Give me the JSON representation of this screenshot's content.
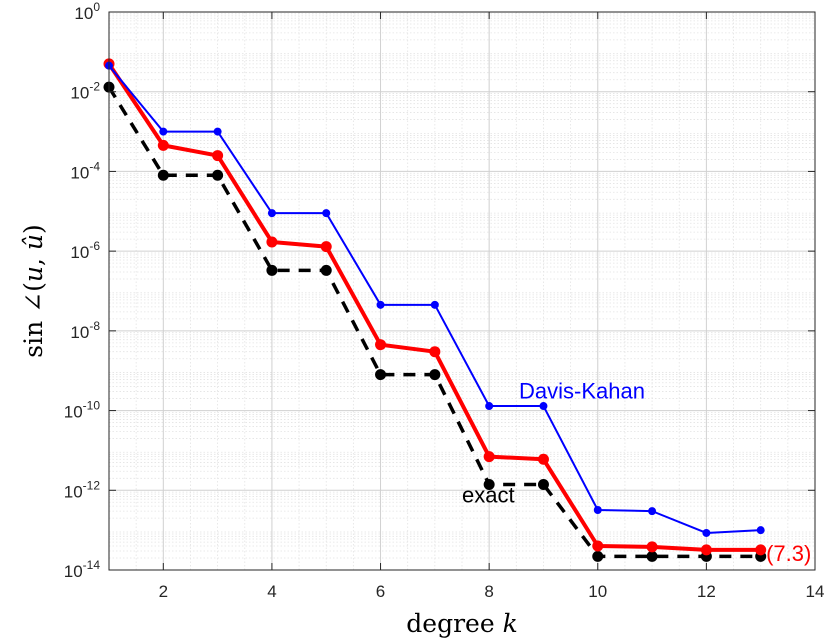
{
  "chart_data": {
    "type": "line",
    "xlabel": "degree k",
    "ylabel": "sin ∠(u, û)",
    "xlim": [
      1,
      14
    ],
    "ylim": [
      1e-14,
      1
    ],
    "yscale": "log",
    "grid": "major and minor",
    "x_ticks": [
      2,
      4,
      6,
      8,
      10,
      12,
      14
    ],
    "y_ticks": [
      {
        "base": "10",
        "exp": "0",
        "value": 1
      },
      {
        "base": "10",
        "exp": "-2",
        "value": 0.01
      },
      {
        "base": "10",
        "exp": "-4",
        "value": 0.0001
      },
      {
        "base": "10",
        "exp": "-6",
        "value": 1e-06
      },
      {
        "base": "10",
        "exp": "-8",
        "value": 1e-08
      },
      {
        "base": "10",
        "exp": "-10",
        "value": 1e-10
      },
      {
        "base": "10",
        "exp": "-12",
        "value": 1e-12
      },
      {
        "base": "10",
        "exp": "-14",
        "value": 1e-14
      }
    ],
    "series": [
      {
        "name": "Davis-Kahan",
        "color": "#0000ff",
        "style": "solid-thin",
        "x": [
          1,
          2,
          3,
          4,
          5,
          6,
          7,
          8,
          9,
          10,
          11,
          12,
          13
        ],
        "y": [
          0.045,
          0.001,
          0.001,
          9e-06,
          9e-06,
          4.5e-08,
          4.5e-08,
          1.3e-10,
          1.3e-10,
          3.2e-13,
          3e-13,
          8.5e-14,
          1e-13
        ]
      },
      {
        "name": "(7.3)",
        "color": "#ff0000",
        "style": "solid-thick",
        "x": [
          1,
          2,
          3,
          4,
          5,
          6,
          7,
          8,
          9,
          10,
          11,
          12,
          13
        ],
        "y": [
          0.05,
          0.00045,
          0.00025,
          1.7e-06,
          1.3e-06,
          4.5e-09,
          3e-09,
          7e-12,
          6e-12,
          4e-14,
          3.8e-14,
          3.2e-14,
          3.2e-14
        ]
      },
      {
        "name": "exact",
        "color": "#000000",
        "style": "dashed-thick",
        "x": [
          1,
          2,
          3,
          4,
          5,
          6,
          7,
          8,
          9,
          10,
          11,
          12,
          13
        ],
        "y": [
          0.013,
          8e-05,
          8e-05,
          3.3e-07,
          3.3e-07,
          8e-10,
          8e-10,
          1.4e-12,
          1.4e-12,
          2.2e-14,
          2.2e-14,
          2.2e-14,
          2.2e-14
        ]
      }
    ],
    "annotations": [
      {
        "text": "Davis-Kahan",
        "color": "#0000ff",
        "x": 8.55,
        "y": 2e-10
      },
      {
        "text": "exact",
        "color": "#000000",
        "x": 7.5,
        "y": 5e-13
      },
      {
        "text": "(7.3)",
        "color": "#ff0000",
        "x": 13.1,
        "y": 1.7e-14
      }
    ]
  }
}
